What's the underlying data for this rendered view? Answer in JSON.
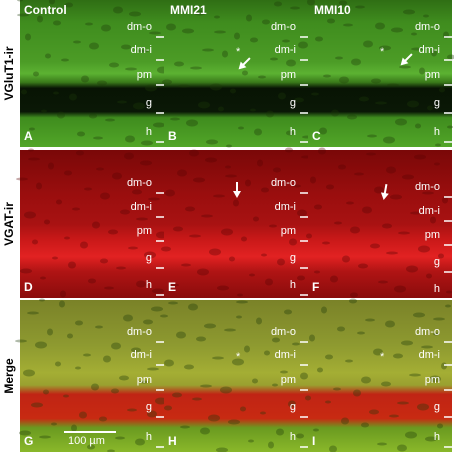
{
  "columns": [
    "Control",
    "MMI21",
    "MMI10"
  ],
  "rows": [
    {
      "label": "VGluT1-ir",
      "panels": [
        {
          "letter": "A",
          "layers": [
            "dm-o",
            "dm-i",
            "pm",
            "g",
            "h"
          ]
        },
        {
          "letter": "B",
          "layers": [
            "dm-o",
            "dm-i",
            "pm",
            "g",
            "h"
          ],
          "marker": "*"
        },
        {
          "letter": "C",
          "layers": [
            "dm-o",
            "dm-i",
            "pm",
            "g",
            "h"
          ],
          "marker": "*"
        }
      ]
    },
    {
      "label": "VGAT-ir",
      "panels": [
        {
          "letter": "D",
          "layers": [
            "dm-o",
            "dm-i",
            "pm",
            "g",
            "h"
          ]
        },
        {
          "letter": "E",
          "layers": [
            "dm-o",
            "dm-i",
            "pm",
            "g",
            "h"
          ]
        },
        {
          "letter": "F",
          "layers": [
            "dm-o",
            "dm-i",
            "pm",
            "g",
            "h"
          ]
        }
      ]
    },
    {
      "label": "Merge",
      "panels": [
        {
          "letter": "G",
          "layers": [
            "dm-o",
            "dm-i",
            "pm",
            "g",
            "h"
          ],
          "scale_bar": "100 µm"
        },
        {
          "letter": "H",
          "layers": [
            "dm-o",
            "dm-i",
            "pm",
            "g",
            "h"
          ],
          "marker": "*"
        },
        {
          "letter": "I",
          "layers": [
            "dm-o",
            "dm-i",
            "pm",
            "g",
            "h"
          ],
          "marker": "*"
        }
      ]
    }
  ]
}
